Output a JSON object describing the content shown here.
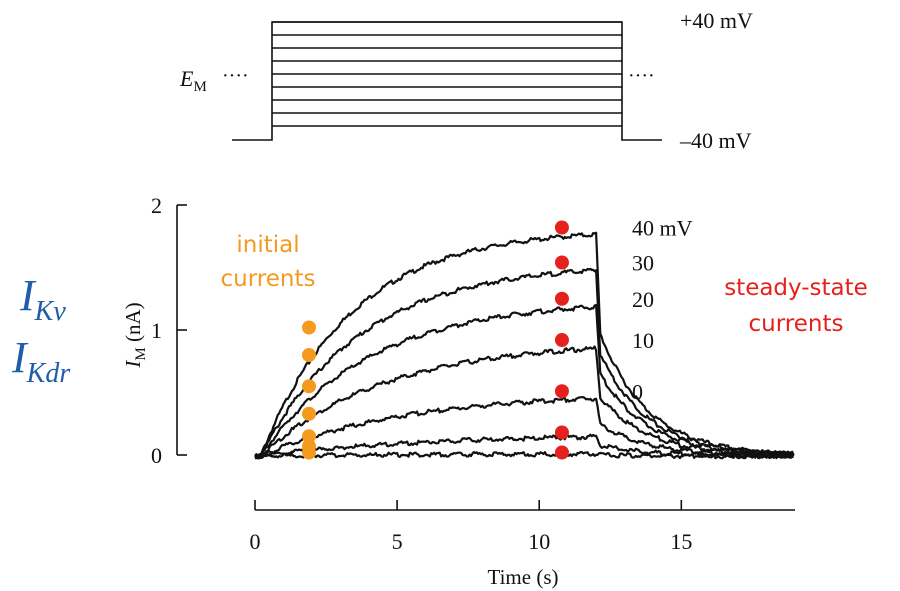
{
  "chart_data": {
    "type": "line",
    "title": "",
    "xlabel": "Time (s)",
    "ylabel_main": "I",
    "ylabel_sub": "M",
    "ylabel_unit": " (nA)",
    "xlim": [
      0,
      19
    ],
    "ylim": [
      0,
      2
    ],
    "x_ticks": [
      0,
      5,
      10,
      15
    ],
    "y_ticks": [
      0,
      1,
      2
    ],
    "pulse": {
      "start": 0.2,
      "end": 12.0
    },
    "series": [
      {
        "name": "40 mV",
        "initial": 1.02,
        "steady": 1.82,
        "tau": 3.2
      },
      {
        "name": "30",
        "initial": 0.8,
        "steady": 1.54,
        "tau": 3.5
      },
      {
        "name": "20",
        "initial": 0.55,
        "steady": 1.25,
        "tau": 3.8
      },
      {
        "name": "10",
        "initial": 0.33,
        "steady": 0.92,
        "tau": 4.3
      },
      {
        "name": "0",
        "initial": 0.15,
        "steady": 0.51,
        "tau": 5.0
      },
      {
        "name": "",
        "initial": 0.07,
        "steady": 0.18,
        "tau": 6.0
      },
      {
        "name": "",
        "initial": 0.02,
        "steady": 0.02,
        "tau": 6.0
      }
    ],
    "initial_marker_time": 1.9,
    "steady_marker_time": 10.8,
    "marker_colors": {
      "initial": "#f39a1f",
      "steady": "#e5211d"
    }
  },
  "voltage_protocol": {
    "holding_label_main": "E",
    "holding_label_sub": "M",
    "top_label": "+40 mV",
    "bottom_label": "–40 mV",
    "step_count": 9
  },
  "annotations": {
    "initial_line1": "initial",
    "initial_line2": "currents",
    "steady_line1": "steady-state",
    "steady_line2": "currents",
    "current1_main": "I",
    "current1_sub": "Kv",
    "current2_main": "I",
    "current2_sub": "Kdr"
  },
  "colors": {
    "initial_text": "#f39a1f",
    "steady_text": "#e5211d",
    "current_labels": "#1f5ea8"
  }
}
